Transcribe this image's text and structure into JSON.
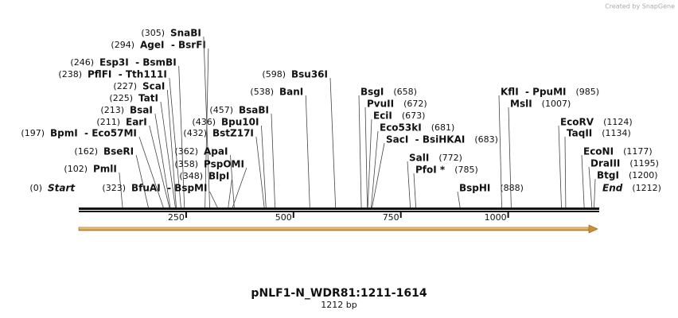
{
  "credit": "Created by SnapGene",
  "title": "pNLF1-N_WDR81:1211-1614",
  "length_label": "1212 bp",
  "scale": {
    "xlim": [
      0,
      1212
    ],
    "ticks": [
      250,
      500,
      750,
      1000
    ]
  },
  "sites": [
    {
      "name": "Start",
      "pos": 0,
      "pos_label": "(0)"
    },
    {
      "name": "PmlI",
      "pos": 102,
      "pos_label": "(102)"
    },
    {
      "name": "BseRI",
      "pos": 162,
      "pos_label": "(162)"
    },
    {
      "name": "BpmI  - Eco57MI",
      "pos": 197,
      "pos_label": "(197)"
    },
    {
      "name": "EarI",
      "pos": 211,
      "pos_label": "(211)"
    },
    {
      "name": "BsaI",
      "pos": 213,
      "pos_label": "(213)"
    },
    {
      "name": "TatI",
      "pos": 225,
      "pos_label": "(225)"
    },
    {
      "name": "ScaI",
      "pos": 227,
      "pos_label": "(227)"
    },
    {
      "name": "PflFI  - Tth111I",
      "pos": 238,
      "pos_label": "(238)"
    },
    {
      "name": "Esp3I  - BsmBI",
      "pos": 246,
      "pos_label": "(246)"
    },
    {
      "name": "AgeI  - BsrFI",
      "pos": 294,
      "pos_label": "(294)"
    },
    {
      "name": "SnaBI",
      "pos": 305,
      "pos_label": "(305)"
    },
    {
      "name": "BfuAI  - BspMI",
      "pos": 323,
      "pos_label": "(323)"
    },
    {
      "name": "BlpI",
      "pos": 348,
      "pos_label": "(348)"
    },
    {
      "name": "PspOMI",
      "pos": 358,
      "pos_label": "(358)"
    },
    {
      "name": "ApaI",
      "pos": 362,
      "pos_label": "(362)"
    },
    {
      "name": "BstZ17I",
      "pos": 432,
      "pos_label": "(432)"
    },
    {
      "name": "Bpu10I",
      "pos": 436,
      "pos_label": "(436)"
    },
    {
      "name": "BsaBI",
      "pos": 457,
      "pos_label": "(457)"
    },
    {
      "name": "BanI",
      "pos": 538,
      "pos_label": "(538)"
    },
    {
      "name": "Bsu36I",
      "pos": 598,
      "pos_label": "(598)"
    },
    {
      "name": "BsgI",
      "pos": 658,
      "pos_label": "(658)"
    },
    {
      "name": "PvuII",
      "pos": 672,
      "pos_label": "(672)"
    },
    {
      "name": "EciI",
      "pos": 673,
      "pos_label": "(673)"
    },
    {
      "name": "Eco53kI",
      "pos": 681,
      "pos_label": "(681)"
    },
    {
      "name": "SacI  - BsiHKAI",
      "pos": 683,
      "pos_label": "(683)"
    },
    {
      "name": "SalI",
      "pos": 772,
      "pos_label": "(772)"
    },
    {
      "name": "PfoI *",
      "pos": 785,
      "pos_label": "(785)"
    },
    {
      "name": "BspHI",
      "pos": 888,
      "pos_label": "(888)"
    },
    {
      "name": "KflI  - PpuMI",
      "pos": 985,
      "pos_label": "(985)"
    },
    {
      "name": "MslI",
      "pos": 1007,
      "pos_label": "(1007)"
    },
    {
      "name": "EcoRV",
      "pos": 1124,
      "pos_label": "(1124)"
    },
    {
      "name": "TaqII",
      "pos": 1134,
      "pos_label": "(1134)"
    },
    {
      "name": "EcoNI",
      "pos": 1177,
      "pos_label": "(1177)"
    },
    {
      "name": "DraIII",
      "pos": 1195,
      "pos_label": "(1195)"
    },
    {
      "name": "BtgI",
      "pos": 1200,
      "pos_label": "(1200)"
    },
    {
      "name": "End",
      "pos": 1212,
      "pos_label": "(1212)"
    }
  ]
}
